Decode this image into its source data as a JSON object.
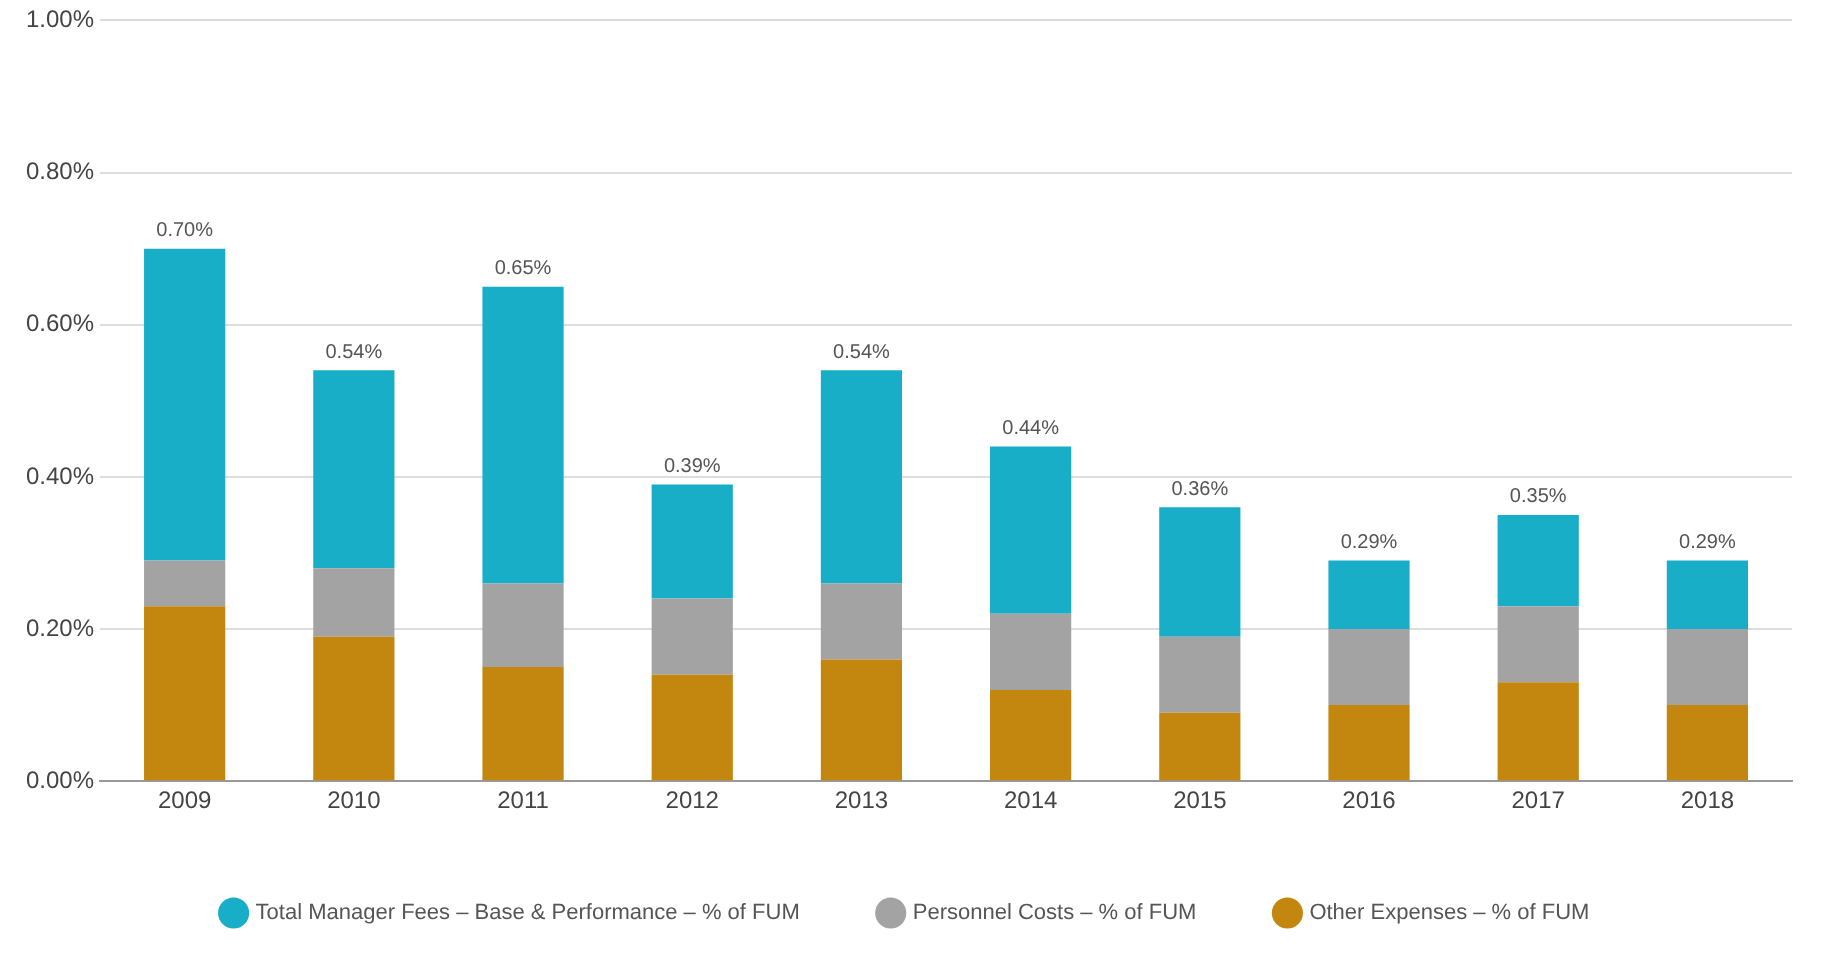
{
  "chart_data": {
    "type": "bar",
    "stacked": true,
    "categories": [
      "2009",
      "2010",
      "2011",
      "2012",
      "2013",
      "2014",
      "2015",
      "2016",
      "2017",
      "2018"
    ],
    "series": [
      {
        "name": "Other Expenses – % of FUM",
        "color": "#c3860f",
        "values": [
          0.23,
          0.19,
          0.15,
          0.14,
          0.16,
          0.12,
          0.09,
          0.1,
          0.13,
          0.1
        ]
      },
      {
        "name": "Personnel Costs – % of FUM",
        "color": "#a3a3a3",
        "values": [
          0.06,
          0.09,
          0.11,
          0.1,
          0.1,
          0.1,
          0.1,
          0.1,
          0.1,
          0.1
        ]
      },
      {
        "name": "Total Manager Fees – Base & Performance – % of FUM",
        "color": "#19aec8",
        "values": [
          0.41,
          0.26,
          0.39,
          0.15,
          0.28,
          0.22,
          0.17,
          0.09,
          0.12,
          0.09
        ]
      }
    ],
    "totals": [
      "0.70%",
      "0.54%",
      "0.65%",
      "0.39%",
      "0.54%",
      "0.44%",
      "0.36%",
      "0.29%",
      "0.35%",
      "0.29%"
    ],
    "ylim": [
      0,
      1
    ],
    "yticks": [
      {
        "value": 0,
        "label": "0.00%"
      },
      {
        "value": 0.2,
        "label": "0.20%"
      },
      {
        "value": 0.4,
        "label": "0.40%"
      },
      {
        "value": 0.6,
        "label": "0.60%"
      },
      {
        "value": 0.8,
        "label": "0.80%"
      },
      {
        "value": 1,
        "label": "1.00%"
      }
    ],
    "grid": "y",
    "legend": "bottom"
  }
}
